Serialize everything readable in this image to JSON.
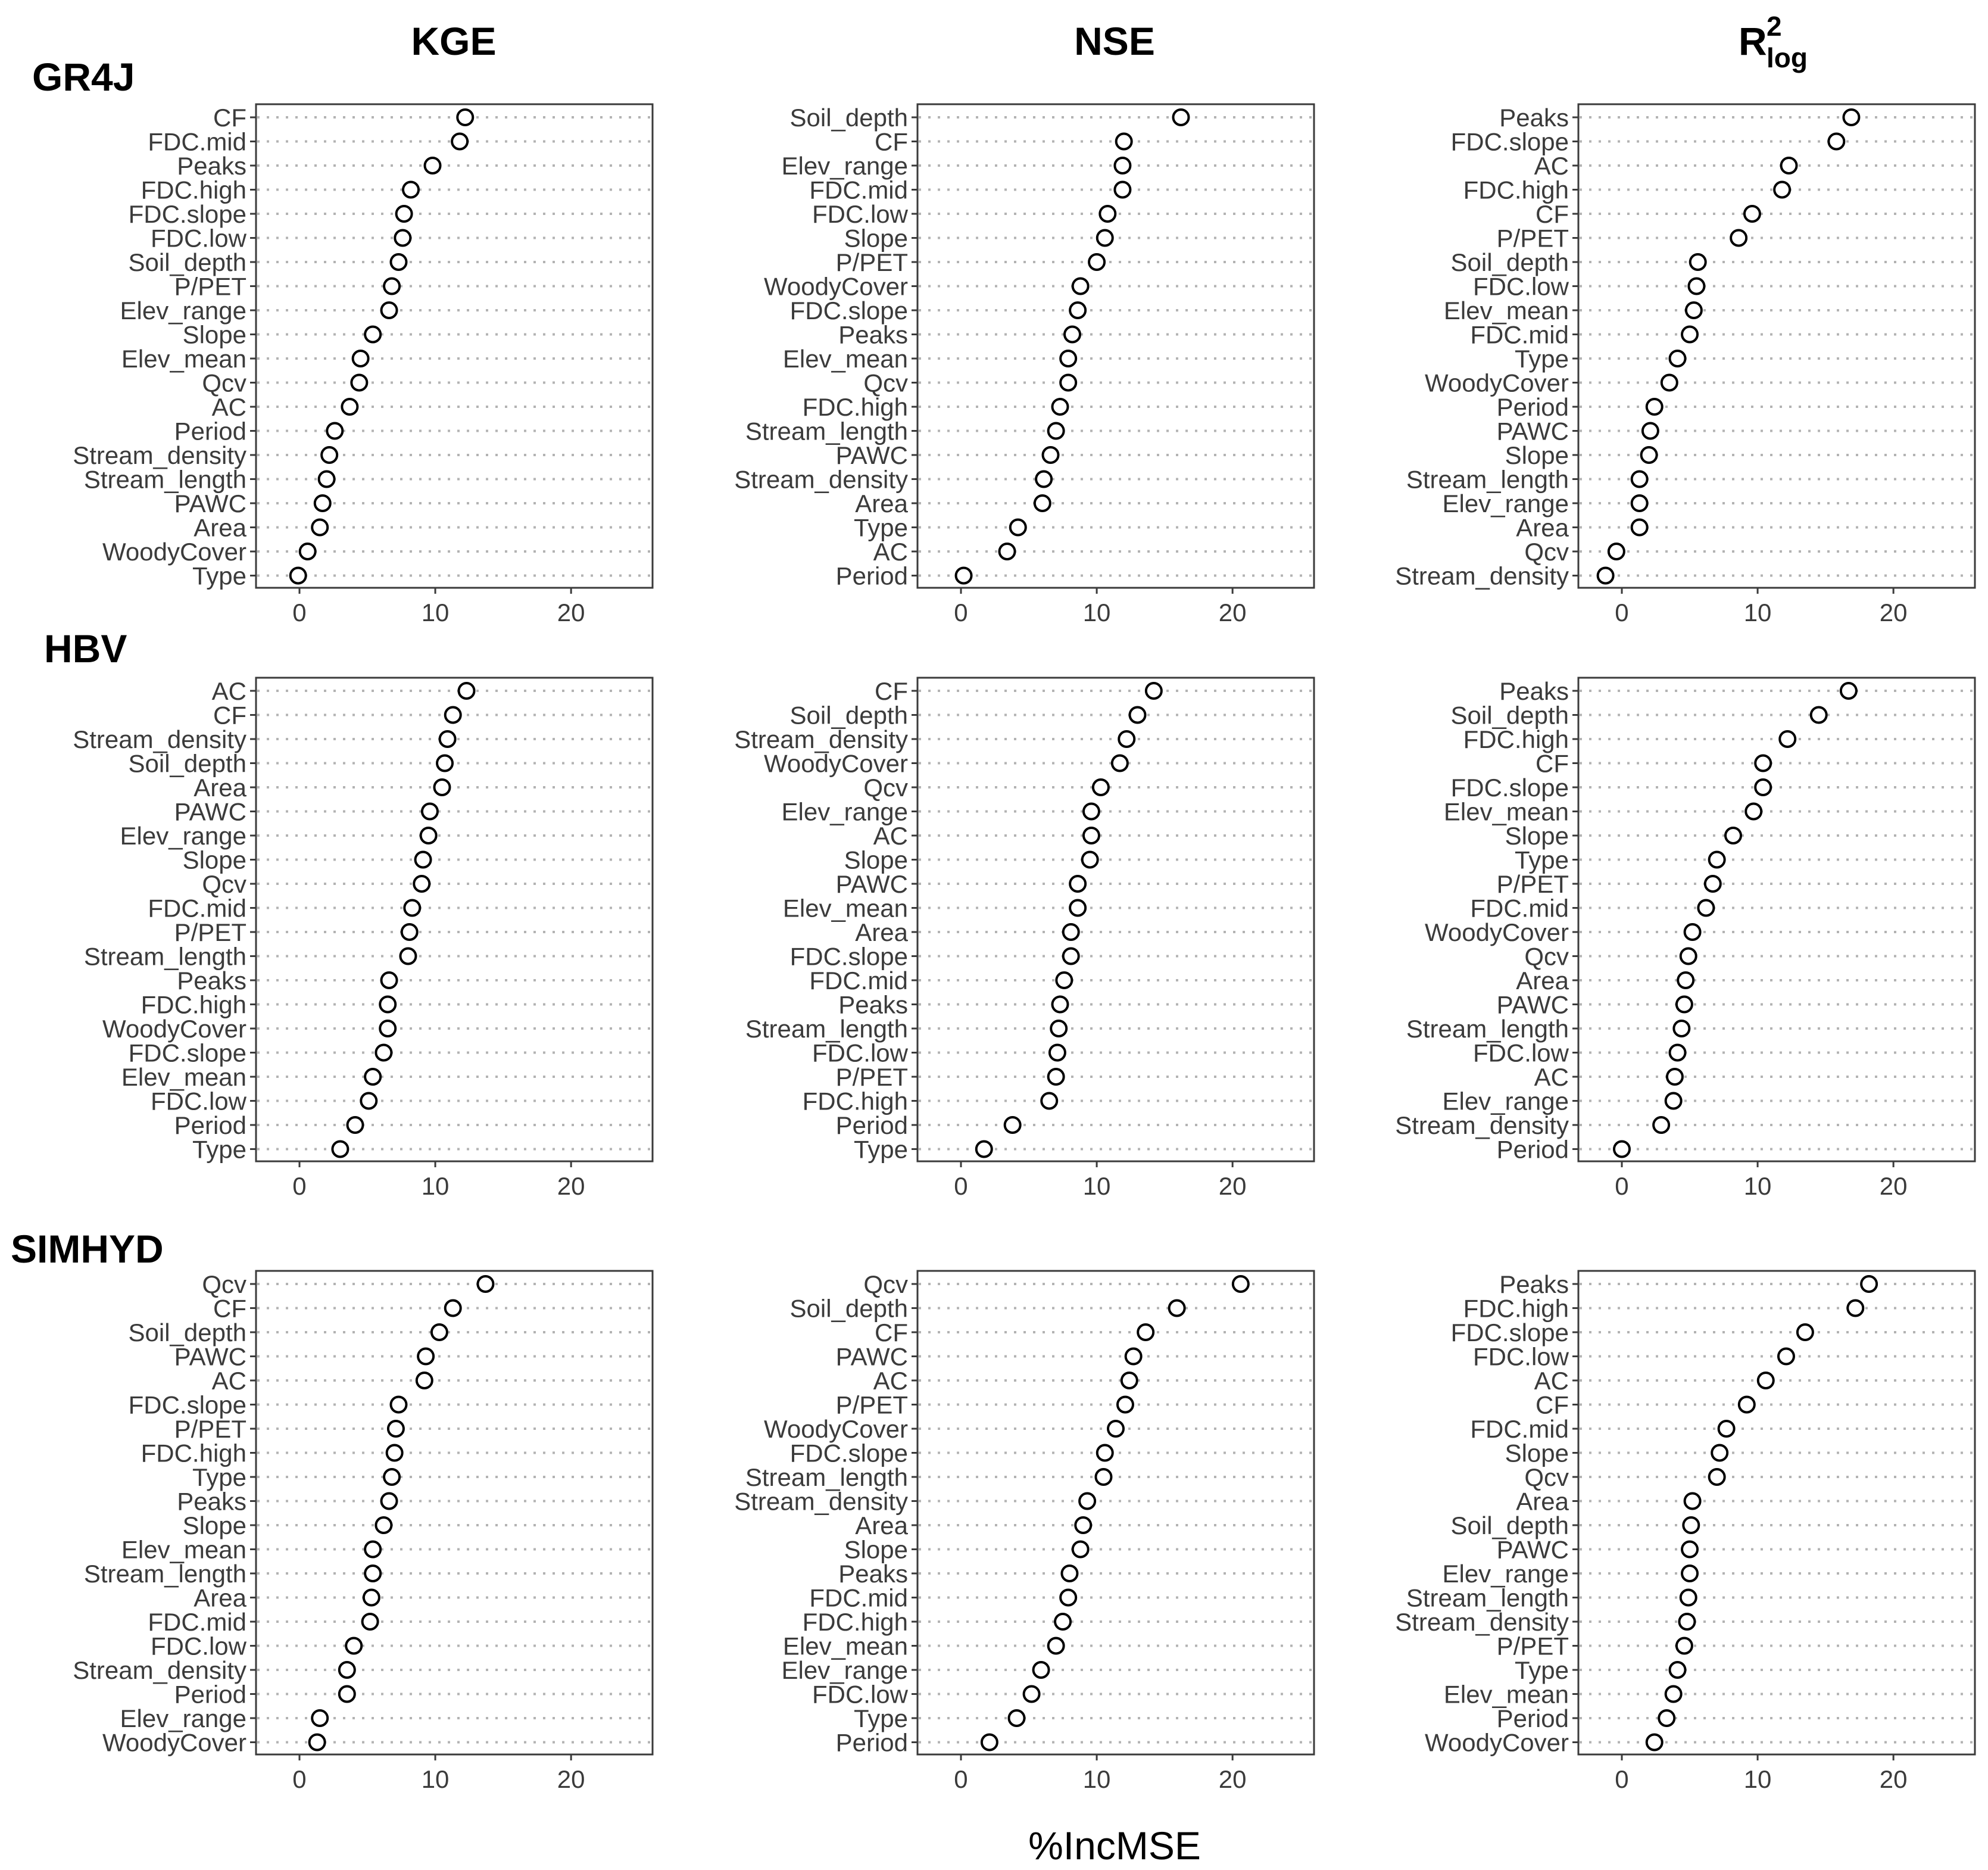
{
  "figure": {
    "xlabel": "%IncMSE"
  },
  "columns": [
    {
      "title": "KGE"
    },
    {
      "title": "NSE"
    },
    {
      "title_main": "R",
      "title_sup": "2",
      "title_sub": "log"
    }
  ],
  "rows": [
    {
      "title": "GR4J"
    },
    {
      "title": "HBV"
    },
    {
      "title": "SIMHYD"
    }
  ],
  "chart_data": [
    {
      "type": "scatter",
      "model": "GR4J",
      "metric": "KGE",
      "xlim": [
        -3.2,
        26
      ],
      "xticks": [
        0,
        10,
        20
      ],
      "labels": [
        "CF",
        "FDC.mid",
        "Peaks",
        "FDC.high",
        "FDC.slope",
        "FDC.low",
        "Soil_depth",
        "P/PET",
        "Elev_range",
        "Slope",
        "Elev_mean",
        "Qcv",
        "AC",
        "Period",
        "Stream_density",
        "Stream_length",
        "PAWC",
        "Area",
        "WoodyCover",
        "Type"
      ],
      "values": [
        12.2,
        11.8,
        9.8,
        8.2,
        7.7,
        7.6,
        7.3,
        6.8,
        6.6,
        5.4,
        4.5,
        4.4,
        3.7,
        2.6,
        2.2,
        2.0,
        1.7,
        1.5,
        0.6,
        -0.1
      ]
    },
    {
      "type": "scatter",
      "model": "GR4J",
      "metric": "NSE",
      "xlim": [
        -3.2,
        26
      ],
      "xticks": [
        0,
        10,
        20
      ],
      "labels": [
        "Soil_depth",
        "CF",
        "Elev_range",
        "FDC.mid",
        "FDC.low",
        "Slope",
        "P/PET",
        "WoodyCover",
        "FDC.slope",
        "Peaks",
        "Elev_mean",
        "Qcv",
        "FDC.high",
        "Stream_length",
        "PAWC",
        "Stream_density",
        "Area",
        "Type",
        "AC",
        "Period"
      ],
      "values": [
        16.2,
        12.0,
        11.9,
        11.9,
        10.8,
        10.6,
        10.0,
        8.8,
        8.6,
        8.2,
        7.9,
        7.9,
        7.3,
        7.0,
        6.6,
        6.1,
        6.0,
        4.2,
        3.4,
        0.2
      ]
    },
    {
      "type": "scatter",
      "model": "GR4J",
      "metric": "R2log",
      "xlim": [
        -3.2,
        26
      ],
      "xticks": [
        0,
        10,
        20
      ],
      "labels": [
        "Peaks",
        "FDC.slope",
        "AC",
        "FDC.high",
        "CF",
        "P/PET",
        "Soil_depth",
        "FDC.low",
        "Elev_mean",
        "FDC.mid",
        "Type",
        "WoodyCover",
        "Period",
        "PAWC",
        "Slope",
        "Stream_length",
        "Elev_range",
        "Area",
        "Qcv",
        "Stream_density"
      ],
      "values": [
        16.9,
        15.8,
        12.3,
        11.8,
        9.6,
        8.6,
        5.6,
        5.5,
        5.3,
        5.0,
        4.1,
        3.5,
        2.4,
        2.1,
        2.0,
        1.3,
        1.3,
        1.3,
        -0.4,
        -1.2
      ]
    },
    {
      "type": "scatter",
      "model": "HBV",
      "metric": "KGE",
      "xlim": [
        -3.2,
        26
      ],
      "xticks": [
        0,
        10,
        20
      ],
      "labels": [
        "AC",
        "CF",
        "Stream_density",
        "Soil_depth",
        "Area",
        "PAWC",
        "Elev_range",
        "Slope",
        "Qcv",
        "FDC.mid",
        "P/PET",
        "Stream_length",
        "Peaks",
        "FDC.high",
        "WoodyCover",
        "FDC.slope",
        "Elev_mean",
        "FDC.low",
        "Period",
        "Type"
      ],
      "values": [
        12.3,
        11.3,
        10.9,
        10.7,
        10.5,
        9.6,
        9.5,
        9.1,
        9.0,
        8.3,
        8.1,
        8.0,
        6.6,
        6.5,
        6.5,
        6.2,
        5.4,
        5.1,
        4.1,
        3.0
      ]
    },
    {
      "type": "scatter",
      "model": "HBV",
      "metric": "NSE",
      "xlim": [
        -3.2,
        26
      ],
      "xticks": [
        0,
        10,
        20
      ],
      "labels": [
        "CF",
        "Soil_depth",
        "Stream_density",
        "WoodyCover",
        "Qcv",
        "Elev_range",
        "AC",
        "Slope",
        "PAWC",
        "Elev_mean",
        "Area",
        "FDC.slope",
        "FDC.mid",
        "Peaks",
        "Stream_length",
        "FDC.low",
        "P/PET",
        "FDC.high",
        "Period",
        "Type"
      ],
      "values": [
        14.2,
        13.0,
        12.2,
        11.7,
        10.3,
        9.6,
        9.6,
        9.5,
        8.6,
        8.6,
        8.1,
        8.1,
        7.6,
        7.3,
        7.2,
        7.1,
        7.0,
        6.5,
        3.8,
        1.7
      ]
    },
    {
      "type": "scatter",
      "model": "HBV",
      "metric": "R2log",
      "xlim": [
        -3.2,
        26
      ],
      "xticks": [
        0,
        10,
        20
      ],
      "labels": [
        "Peaks",
        "Soil_depth",
        "FDC.high",
        "CF",
        "FDC.slope",
        "Elev_mean",
        "Slope",
        "Type",
        "P/PET",
        "FDC.mid",
        "WoodyCover",
        "Qcv",
        "Area",
        "PAWC",
        "Stream_length",
        "FDC.low",
        "AC",
        "Elev_range",
        "Stream_density",
        "Period"
      ],
      "values": [
        16.7,
        14.5,
        12.2,
        10.4,
        10.4,
        9.7,
        8.2,
        7.0,
        6.7,
        6.2,
        5.2,
        4.9,
        4.7,
        4.6,
        4.4,
        4.1,
        3.9,
        3.8,
        2.9,
        0.0
      ]
    },
    {
      "type": "scatter",
      "model": "SIMHYD",
      "metric": "KGE",
      "xlim": [
        -3.2,
        26
      ],
      "xticks": [
        0,
        10,
        20
      ],
      "labels": [
        "Qcv",
        "CF",
        "Soil_depth",
        "PAWC",
        "AC",
        "FDC.slope",
        "P/PET",
        "FDC.high",
        "Type",
        "Peaks",
        "Slope",
        "Elev_mean",
        "Stream_length",
        "Area",
        "FDC.mid",
        "FDC.low",
        "Stream_density",
        "Period",
        "Elev_range",
        "WoodyCover"
      ],
      "values": [
        13.7,
        11.3,
        10.3,
        9.3,
        9.2,
        7.3,
        7.1,
        7.0,
        6.8,
        6.6,
        6.2,
        5.4,
        5.4,
        5.3,
        5.2,
        4.0,
        3.5,
        3.5,
        1.5,
        1.3
      ]
    },
    {
      "type": "scatter",
      "model": "SIMHYD",
      "metric": "NSE",
      "xlim": [
        -3.2,
        26
      ],
      "xticks": [
        0,
        10,
        20
      ],
      "labels": [
        "Qcv",
        "Soil_depth",
        "CF",
        "PAWC",
        "AC",
        "P/PET",
        "WoodyCover",
        "FDC.slope",
        "Stream_length",
        "Stream_density",
        "Area",
        "Slope",
        "Peaks",
        "FDC.mid",
        "FDC.high",
        "Elev_mean",
        "Elev_range",
        "FDC.low",
        "Type",
        "Period"
      ],
      "values": [
        20.6,
        15.9,
        13.6,
        12.7,
        12.4,
        12.1,
        11.4,
        10.6,
        10.5,
        9.3,
        9.0,
        8.8,
        8.0,
        7.9,
        7.5,
        7.0,
        5.9,
        5.2,
        4.1,
        2.1
      ]
    },
    {
      "type": "scatter",
      "model": "SIMHYD",
      "metric": "R2log",
      "xlim": [
        -3.2,
        26
      ],
      "xticks": [
        0,
        10,
        20
      ],
      "labels": [
        "Peaks",
        "FDC.high",
        "FDC.slope",
        "FDC.low",
        "AC",
        "CF",
        "FDC.mid",
        "Slope",
        "Qcv",
        "Area",
        "Soil_depth",
        "PAWC",
        "Elev_range",
        "Stream_length",
        "Stream_density",
        "P/PET",
        "Type",
        "Elev_mean",
        "Period",
        "WoodyCover"
      ],
      "values": [
        18.2,
        17.2,
        13.5,
        12.1,
        10.6,
        9.2,
        7.7,
        7.2,
        7.0,
        5.2,
        5.1,
        5.0,
        5.0,
        4.9,
        4.8,
        4.6,
        4.1,
        3.8,
        3.3,
        2.4
      ]
    }
  ]
}
